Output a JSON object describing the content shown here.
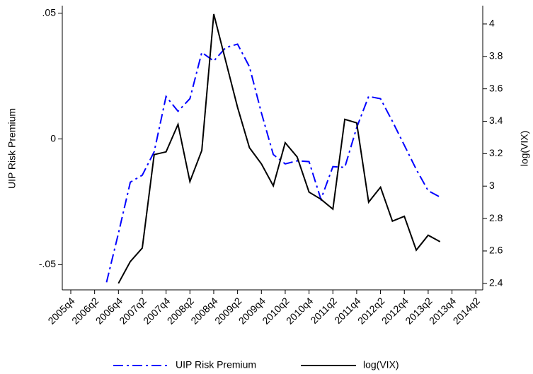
{
  "chart_data": {
    "type": "line",
    "y_label": "UIP Risk Premium",
    "y2_label": "log(VIX)",
    "categories": [
      "2005q4",
      null,
      "2006q2",
      null,
      "2006q4",
      null,
      "2007q2",
      null,
      "2007q4",
      null,
      "2008q2",
      null,
      "2008q4",
      null,
      "2009q2",
      null,
      "2009q4",
      null,
      "2010q2",
      null,
      "2010q4",
      null,
      "2011q2",
      null,
      "2011q4",
      null,
      "2012q2",
      null,
      "2012q4",
      null,
      "2013q2",
      null,
      "2013q4",
      null,
      "2014q2"
    ],
    "ylim": [
      -0.06,
      0.053
    ],
    "yticks": [
      {
        "value": -0.05,
        "label": "-.05"
      },
      0,
      {
        "value": 0.05,
        "label": ".05"
      }
    ],
    "y2lim": [
      2.36,
      4.113
    ],
    "y2ticks": [
      2.4,
      2.6,
      2.8,
      3,
      3.2,
      3.4,
      3.6,
      3.8,
      4
    ],
    "series": [
      {
        "name": "UIP Risk Premium",
        "color": "#0000ff",
        "dash": "dash-dot",
        "values": [
          null,
          null,
          null,
          -0.057,
          -0.0375,
          -0.0172,
          -0.0144,
          -0.0051,
          0.0169,
          0.011,
          0.016,
          0.0344,
          0.031,
          0.0363,
          0.0377,
          0.0287,
          0.0104,
          -0.0062,
          -0.0099,
          -0.0087,
          -0.009,
          -0.024,
          -0.011,
          -0.0113,
          0.0045,
          0.0169,
          0.016,
          0.007,
          -0.0025,
          -0.0121,
          -0.0206,
          -0.0231,
          null,
          null,
          null
        ]
      },
      {
        "name": "log(VIX)",
        "color": "#000000",
        "axis": "y2",
        "dash": "solid",
        "values": [
          null,
          null,
          null,
          null,
          2.4,
          2.535,
          2.618,
          3.194,
          3.211,
          3.381,
          3.028,
          3.22,
          4.061,
          3.773,
          3.486,
          3.237,
          3.137,
          3.002,
          3.268,
          3.18,
          2.963,
          2.919,
          2.858,
          3.412,
          3.39,
          2.901,
          2.993,
          2.784,
          2.814,
          2.605,
          2.697,
          2.657,
          null,
          null,
          null
        ]
      }
    ],
    "legend": "bottom"
  }
}
